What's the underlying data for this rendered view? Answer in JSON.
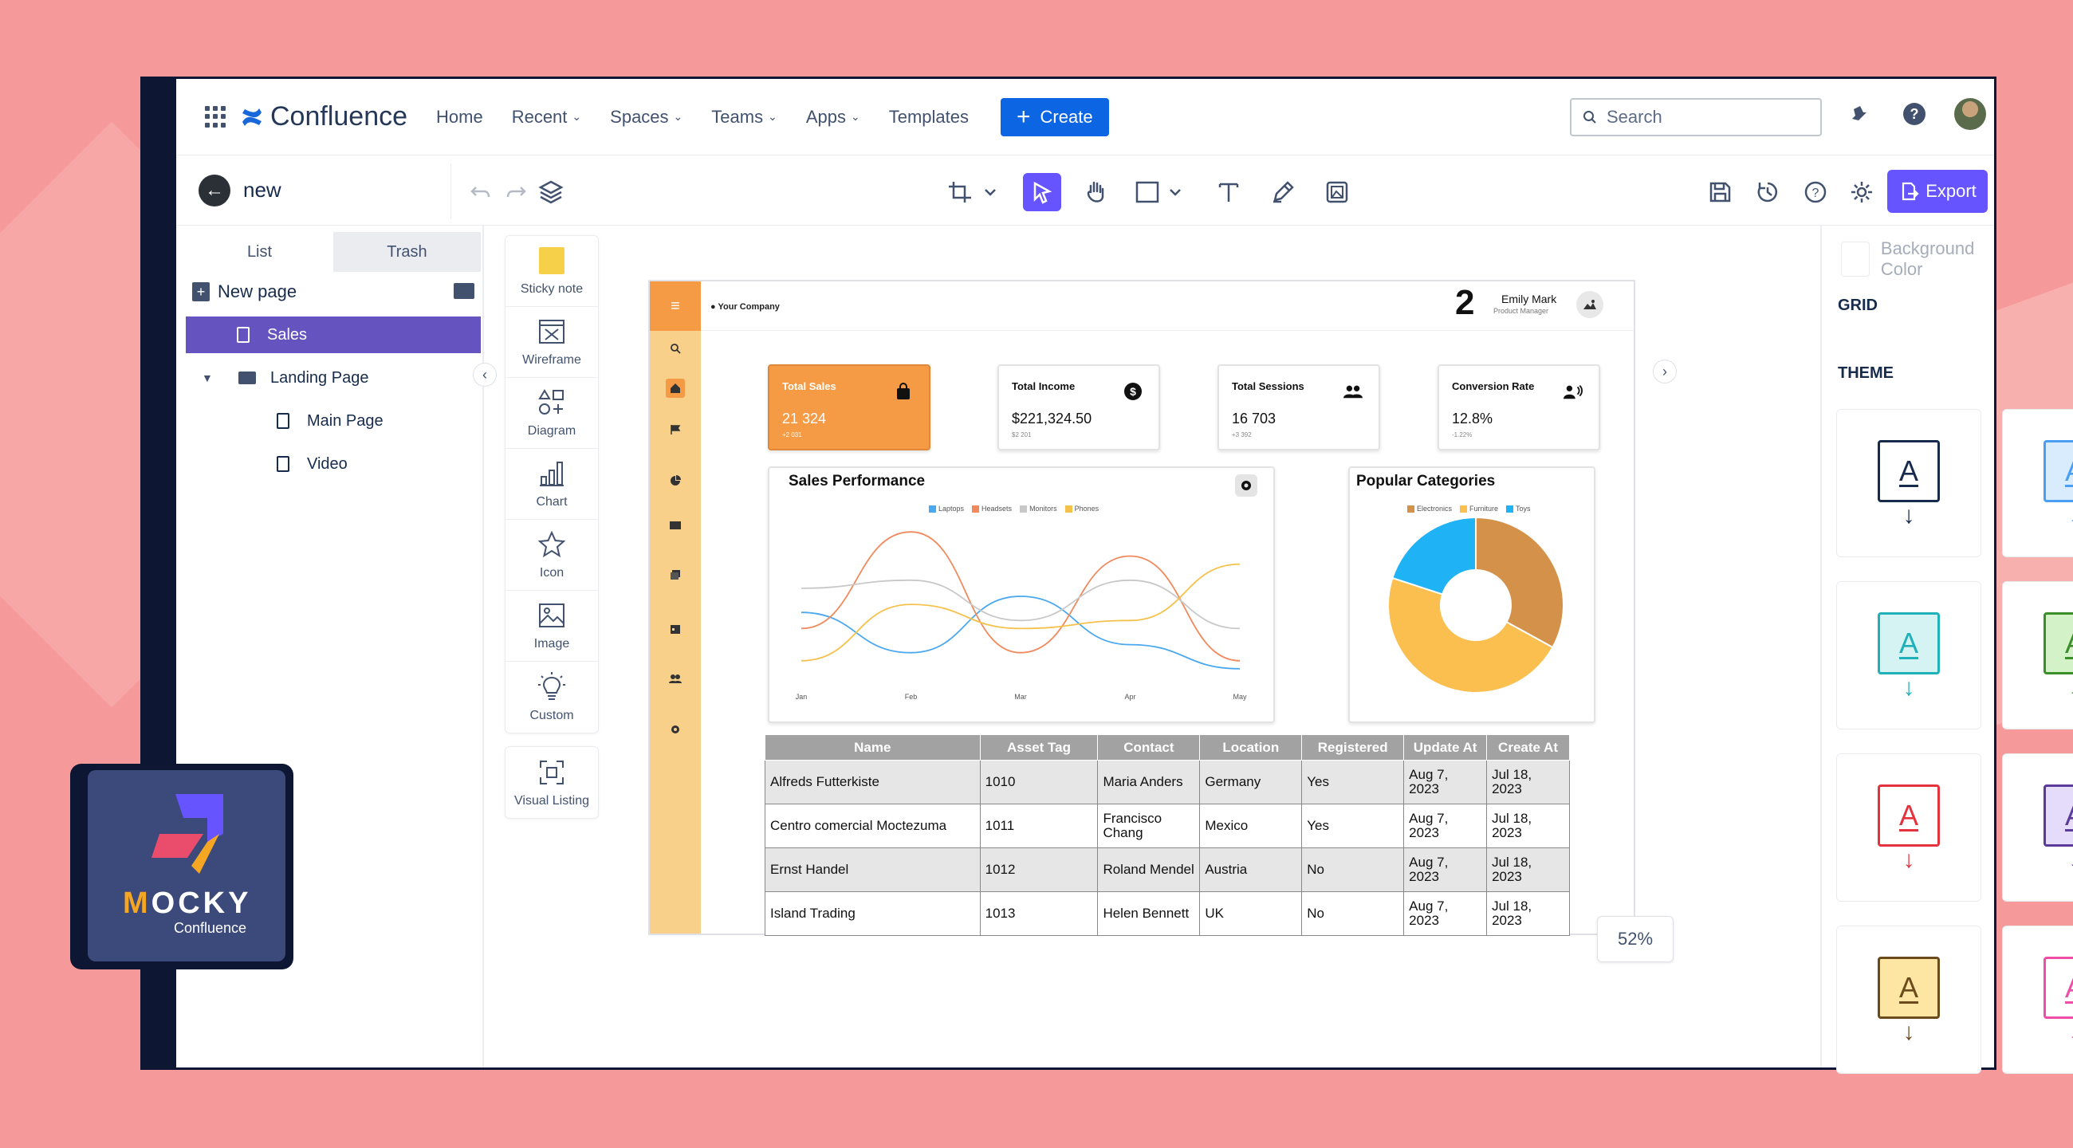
{
  "colors": {
    "accent": "#6554ff",
    "primary": "#0c66e4",
    "orange": "#f59b45",
    "sidebar_selected": "#6554c0"
  },
  "nav": {
    "brand": "Confluence",
    "items": [
      {
        "label": "Home",
        "dropdown": false
      },
      {
        "label": "Recent",
        "dropdown": true
      },
      {
        "label": "Spaces",
        "dropdown": true
      },
      {
        "label": "Teams",
        "dropdown": true
      },
      {
        "label": "Apps",
        "dropdown": true
      },
      {
        "label": "Templates",
        "dropdown": false
      }
    ],
    "create_label": "Create",
    "search_placeholder": "Search",
    "icons": [
      "notification-icon",
      "help-icon",
      "avatar"
    ]
  },
  "toolbar": {
    "page_name": "new",
    "export_label": "Export",
    "tools": [
      "crop-icon",
      "select-icon",
      "hand-icon",
      "shape-icon",
      "text-icon",
      "pen-icon",
      "image-tool-icon"
    ],
    "actions": [
      "save-icon",
      "history-icon",
      "help-icon",
      "settings-icon"
    ]
  },
  "sidebar": {
    "tabs": [
      "List",
      "Trash"
    ],
    "new_page_label": "New page",
    "tree": [
      {
        "label": "Sales",
        "type": "page",
        "selected": true
      },
      {
        "label": "Landing Page",
        "type": "folder",
        "expanded": true
      },
      {
        "label": "Main Page",
        "type": "page"
      },
      {
        "label": "Video",
        "type": "page"
      }
    ]
  },
  "widgets": {
    "main": [
      {
        "label": "Sticky note",
        "icon": "sticky-note-icon"
      },
      {
        "label": "Wireframe",
        "icon": "wireframe-icon"
      },
      {
        "label": "Diagram",
        "icon": "diagram-icon"
      },
      {
        "label": "Chart",
        "icon": "chart-icon"
      },
      {
        "label": "Icon",
        "icon": "star-icon"
      },
      {
        "label": "Image",
        "icon": "image-icon"
      },
      {
        "label": "Custom",
        "icon": "lightbulb-icon"
      }
    ],
    "extra": [
      {
        "label": "Visual Listing",
        "icon": "visual-listing-icon"
      }
    ]
  },
  "artboard": {
    "company": "Your Company",
    "badge_number": "2",
    "user_name": "Emily Mark",
    "user_role": "Product Manager",
    "kpis": [
      {
        "title": "Total Sales",
        "value": "21 324",
        "sub": "+2 031",
        "icon": "shopping-bag-icon"
      },
      {
        "title": "Total Income",
        "value": "$221,324.50",
        "sub": "$2 201",
        "icon": "dollar-icon"
      },
      {
        "title": "Total Sessions",
        "value": "16 703",
        "sub": "+3 392",
        "icon": "users-icon"
      },
      {
        "title": "Conversion Rate",
        "value": "12.8%",
        "sub": "-1.22%",
        "icon": "megaphone-icon"
      }
    ],
    "table": {
      "headers": [
        "Name",
        "Asset Tag",
        "Contact",
        "Location",
        "Registered",
        "Update At",
        "Create At"
      ],
      "rows": [
        [
          "Alfreds Futterkiste",
          "1010",
          "Maria Anders",
          "Germany",
          "Yes",
          "Aug 7, 2023",
          "Jul 18, 2023"
        ],
        [
          "Centro comercial Moctezuma",
          "1011",
          "Francisco Chang",
          "Mexico",
          "Yes",
          "Aug 7, 2023",
          "Jul 18, 2023"
        ],
        [
          "Ernst Handel",
          "1012",
          "Roland Mendel",
          "Austria",
          "No",
          "Aug 7, 2023",
          "Jul 18, 2023"
        ],
        [
          "Island Trading",
          "1013",
          "Helen Bennett",
          "UK",
          "No",
          "Aug 7, 2023",
          "Jul 18, 2023"
        ]
      ]
    }
  },
  "chart_data": [
    {
      "type": "line",
      "title": "Sales Performance",
      "categories": [
        "Jan",
        "Feb",
        "Mar",
        "Apr",
        "May"
      ],
      "series": [
        {
          "name": "Laptops",
          "color": "#4aa8f0",
          "values": [
            40,
            15,
            50,
            20,
            5
          ]
        },
        {
          "name": "Headsets",
          "color": "#f08a5d",
          "values": [
            30,
            90,
            15,
            75,
            10
          ]
        },
        {
          "name": "Monitors",
          "color": "#c8c8c8",
          "values": [
            55,
            60,
            35,
            60,
            30
          ]
        },
        {
          "name": "Phones",
          "color": "#f5c14a",
          "values": [
            10,
            45,
            30,
            35,
            70
          ]
        }
      ],
      "ylim": [
        0,
        100
      ],
      "grid": false,
      "legend": "top"
    },
    {
      "type": "pie",
      "title": "Popular Categories",
      "donut": true,
      "series": [
        {
          "name": "Electronics",
          "color": "#d4914a",
          "value": 33
        },
        {
          "name": "Furniture",
          "color": "#fbbf4f",
          "value": 47
        },
        {
          "name": "Toys",
          "color": "#1fb2f5",
          "value": 20
        }
      ],
      "legend": "top"
    }
  ],
  "zoom_label": "52%",
  "right_panel": {
    "background_color_label": "Background Color",
    "grid_label": "GRID",
    "grid_on": false,
    "theme_label": "THEME",
    "themes": [
      {
        "color": "#172b4d",
        "fill": "#ffffff"
      },
      {
        "color": "#4a9ff5",
        "fill": "#d9ecfd"
      },
      {
        "color": "#1fb0b8",
        "fill": "#d6f3f3"
      },
      {
        "color": "#3a8f2a",
        "fill": "#d3f2c8"
      },
      {
        "color": "#e5323f",
        "fill": "#ffffff"
      },
      {
        "color": "#5b3a9a",
        "fill": "#e4dcfa"
      },
      {
        "color": "#6b4a1d",
        "fill": "#fde6a3"
      },
      {
        "color": "#ee4ea5",
        "fill": "#ffffff"
      }
    ]
  },
  "badge": {
    "title_first": "M",
    "title_rest": "OCKY",
    "subtitle": "Confluence"
  }
}
